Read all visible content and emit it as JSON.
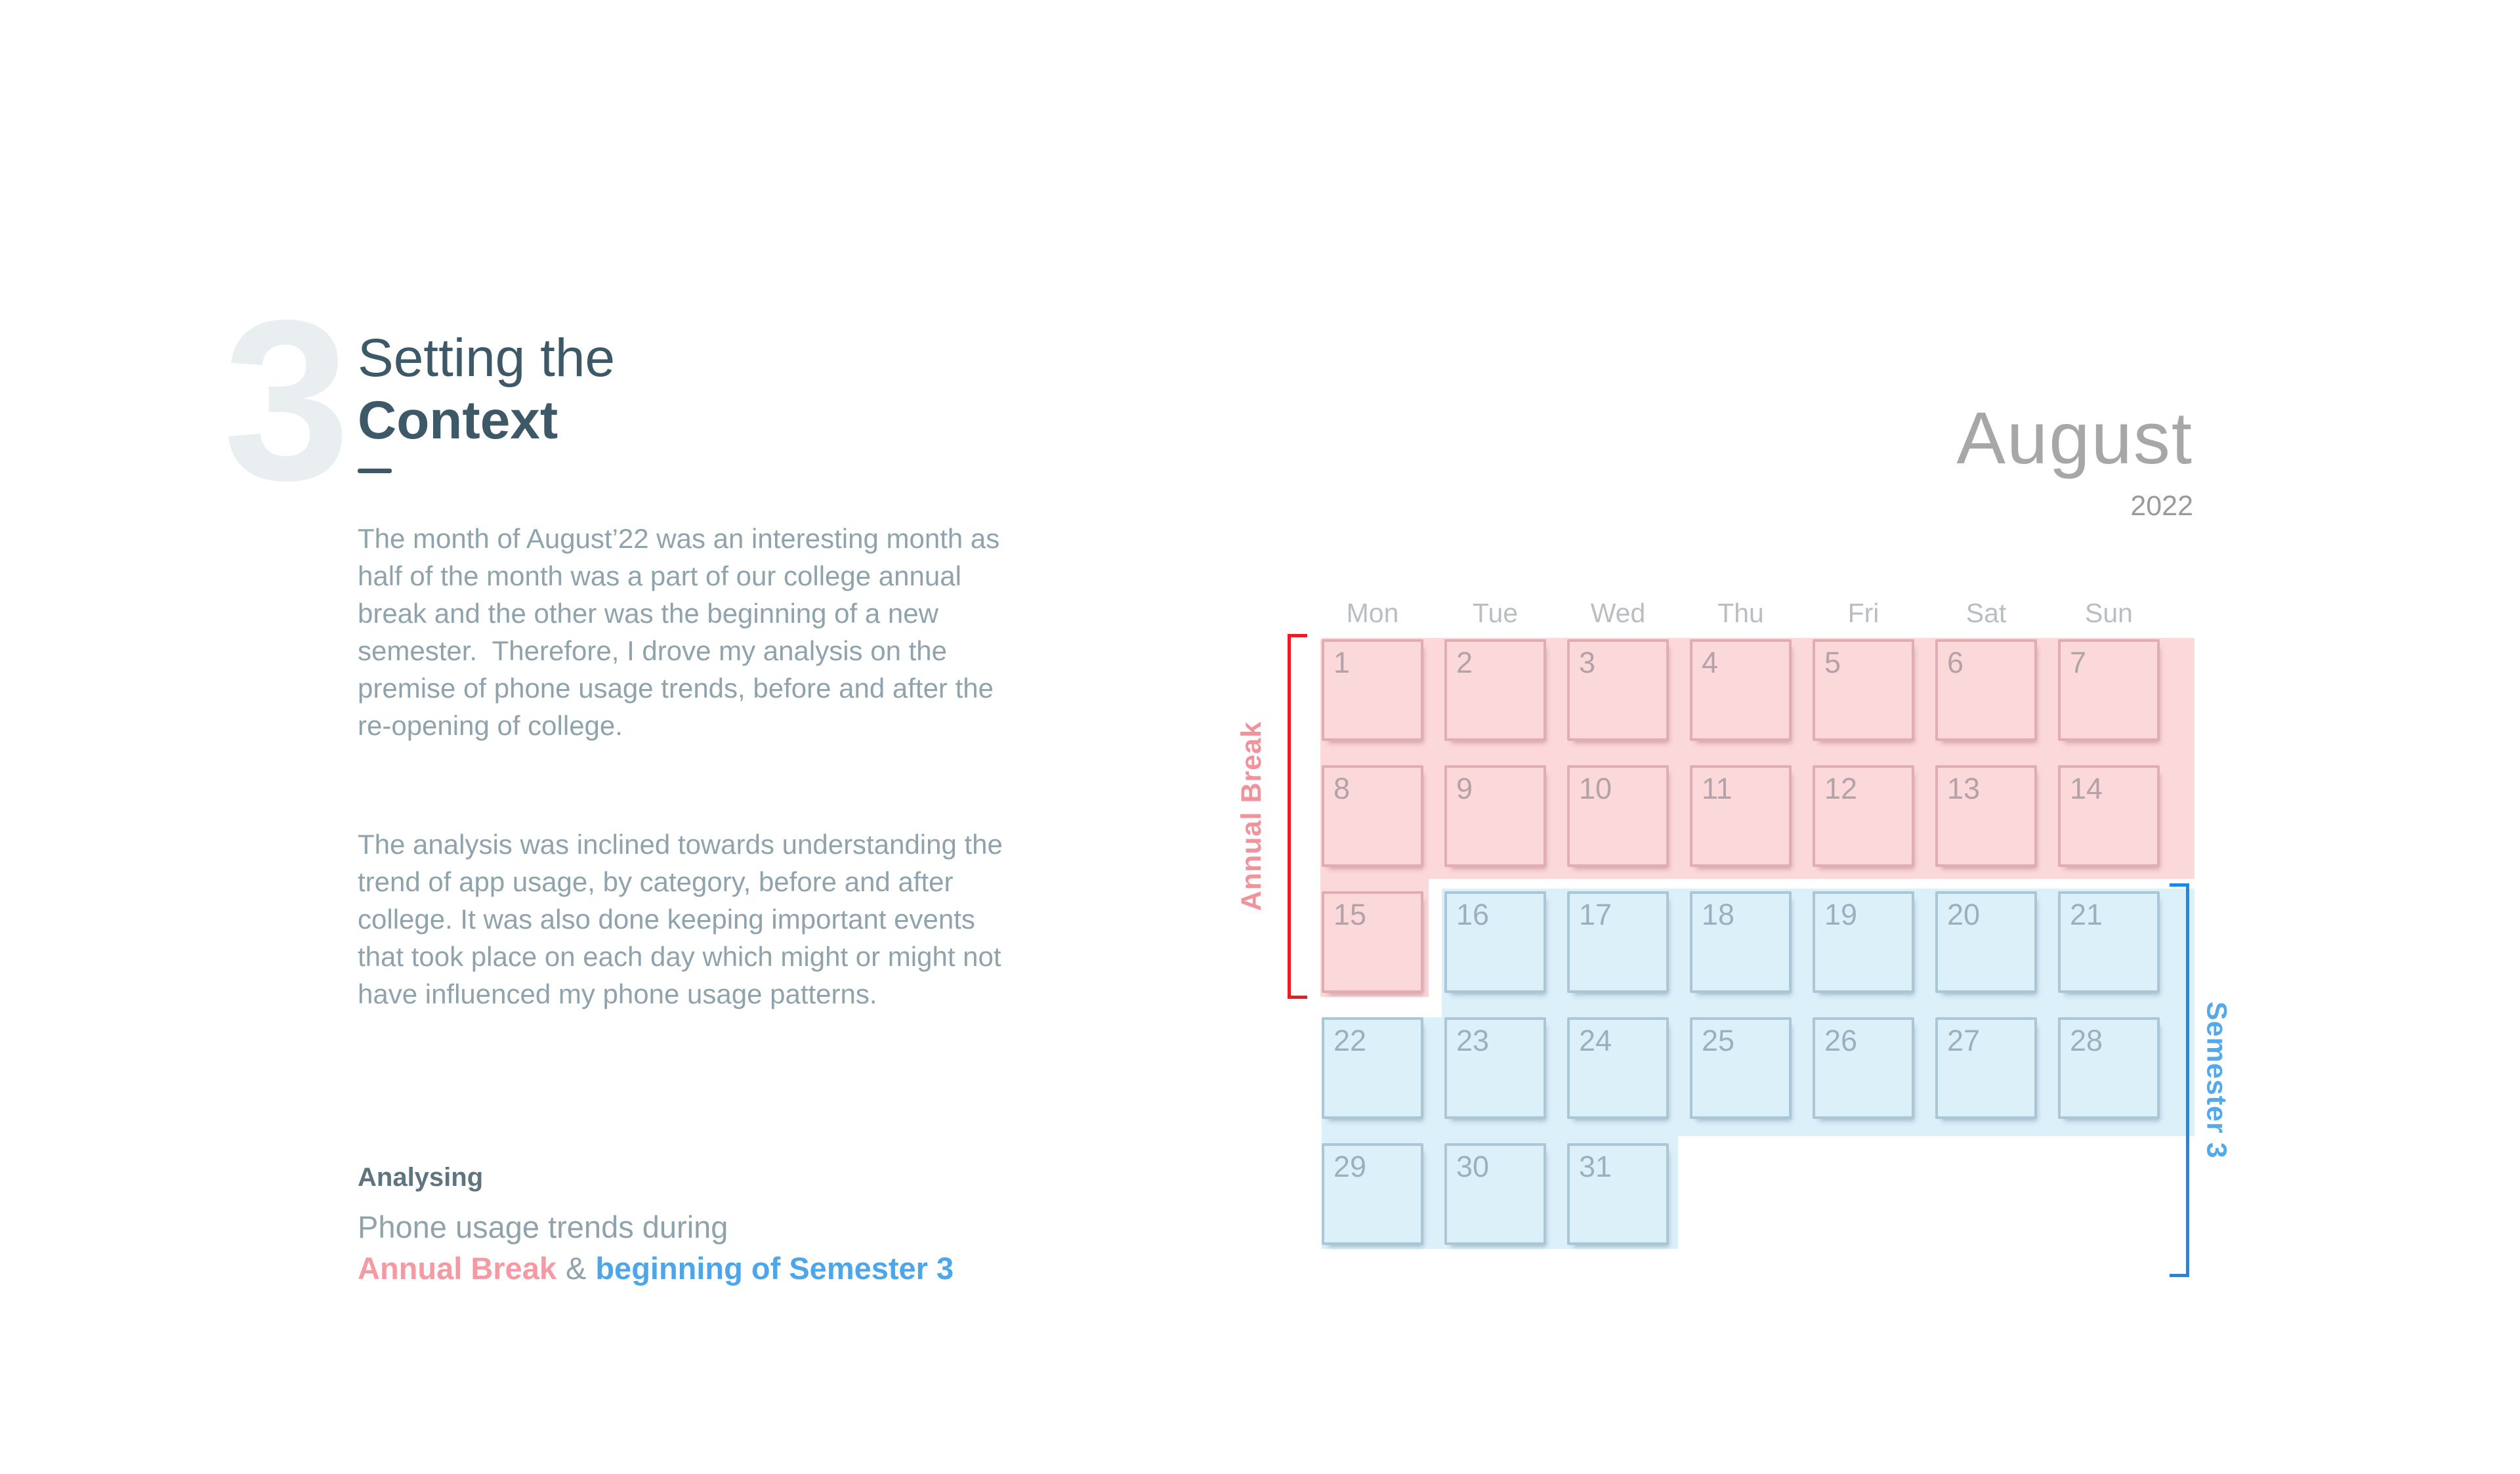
{
  "slide": {
    "section_number": "3",
    "title_line1": "Setting the",
    "title_line2": "Context",
    "paragraph1": "The month of August’22 was an interesting month as half of the month was a part of our college annual break and the other was the beginning of a new semester.  Therefore, I drove my analysis on the premise of phone usage trends, before and after the re-opening of college.",
    "paragraph2": "The analysis was inclined towards understanding the trend of app usage, by category, before and after college. It was also done keeping important events that took place on each day which might or might not have influenced my phone usage patterns.",
    "analysing_label": "Analysing",
    "analysis_line": "Phone usage trends during",
    "analysis_highlight_pink": "Annual Break",
    "analysis_conjunction": "&",
    "analysis_highlight_blue": "beginning of Semester 3"
  },
  "calendar": {
    "month": "August",
    "year": "2022",
    "weekday_headers": [
      "Mon",
      "Tue",
      "Wed",
      "Thu",
      "Fri",
      "Sat",
      "Sun"
    ],
    "annual_break_label": "Annual Break",
    "semester_label": "Semester 3",
    "periods": [
      {
        "name": "Annual Break",
        "days": "1-15",
        "color": "pink"
      },
      {
        "name": "Semester 3",
        "days": "16-31",
        "color": "blue"
      }
    ],
    "days": [
      {
        "day": 1,
        "period": "annual-break"
      },
      {
        "day": 2,
        "period": "annual-break"
      },
      {
        "day": 3,
        "period": "annual-break"
      },
      {
        "day": 4,
        "period": "annual-break"
      },
      {
        "day": 5,
        "period": "annual-break"
      },
      {
        "day": 6,
        "period": "annual-break"
      },
      {
        "day": 7,
        "period": "annual-break"
      },
      {
        "day": 8,
        "period": "annual-break"
      },
      {
        "day": 9,
        "period": "annual-break"
      },
      {
        "day": 10,
        "period": "annual-break"
      },
      {
        "day": 11,
        "period": "annual-break"
      },
      {
        "day": 12,
        "period": "annual-break"
      },
      {
        "day": 13,
        "period": "annual-break"
      },
      {
        "day": 14,
        "period": "annual-break"
      },
      {
        "day": 15,
        "period": "annual-break"
      },
      {
        "day": 16,
        "period": "semester-3"
      },
      {
        "day": 17,
        "period": "semester-3"
      },
      {
        "day": 18,
        "period": "semester-3"
      },
      {
        "day": 19,
        "period": "semester-3"
      },
      {
        "day": 20,
        "period": "semester-3"
      },
      {
        "day": 21,
        "period": "semester-3"
      },
      {
        "day": 22,
        "period": "semester-3"
      },
      {
        "day": 23,
        "period": "semester-3"
      },
      {
        "day": 24,
        "period": "semester-3"
      },
      {
        "day": 25,
        "period": "semester-3"
      },
      {
        "day": 26,
        "period": "semester-3"
      },
      {
        "day": 27,
        "period": "semester-3"
      },
      {
        "day": 28,
        "period": "semester-3"
      },
      {
        "day": 29,
        "period": "semester-3"
      },
      {
        "day": 30,
        "period": "semester-3"
      },
      {
        "day": 31,
        "period": "semester-3"
      }
    ]
  },
  "colors": {
    "title": "#3d5866",
    "body-text": "#8fa3ad",
    "muted-number": "#e9eef0",
    "analysing": "#5e747f",
    "pink-accent": "#f59aa2",
    "blue-accent": "#4ea6ea",
    "month-title": "#a7a7a7",
    "year": "#9a9a9a",
    "weekday": "#b9bec3",
    "pink-band": "#fbd8da",
    "pink-border": "#dfadb2",
    "pink-daynum": "#b3a2a7",
    "blue-band": "#dcf0fa",
    "blue-border": "#abc7d6",
    "blue-daynum": "#9cafbc",
    "bracket-red": "#ec1c24",
    "bracket-blue": "#1f87e5",
    "annual-break-label": "#f2929b",
    "semester-label": "#54a9ec"
  }
}
